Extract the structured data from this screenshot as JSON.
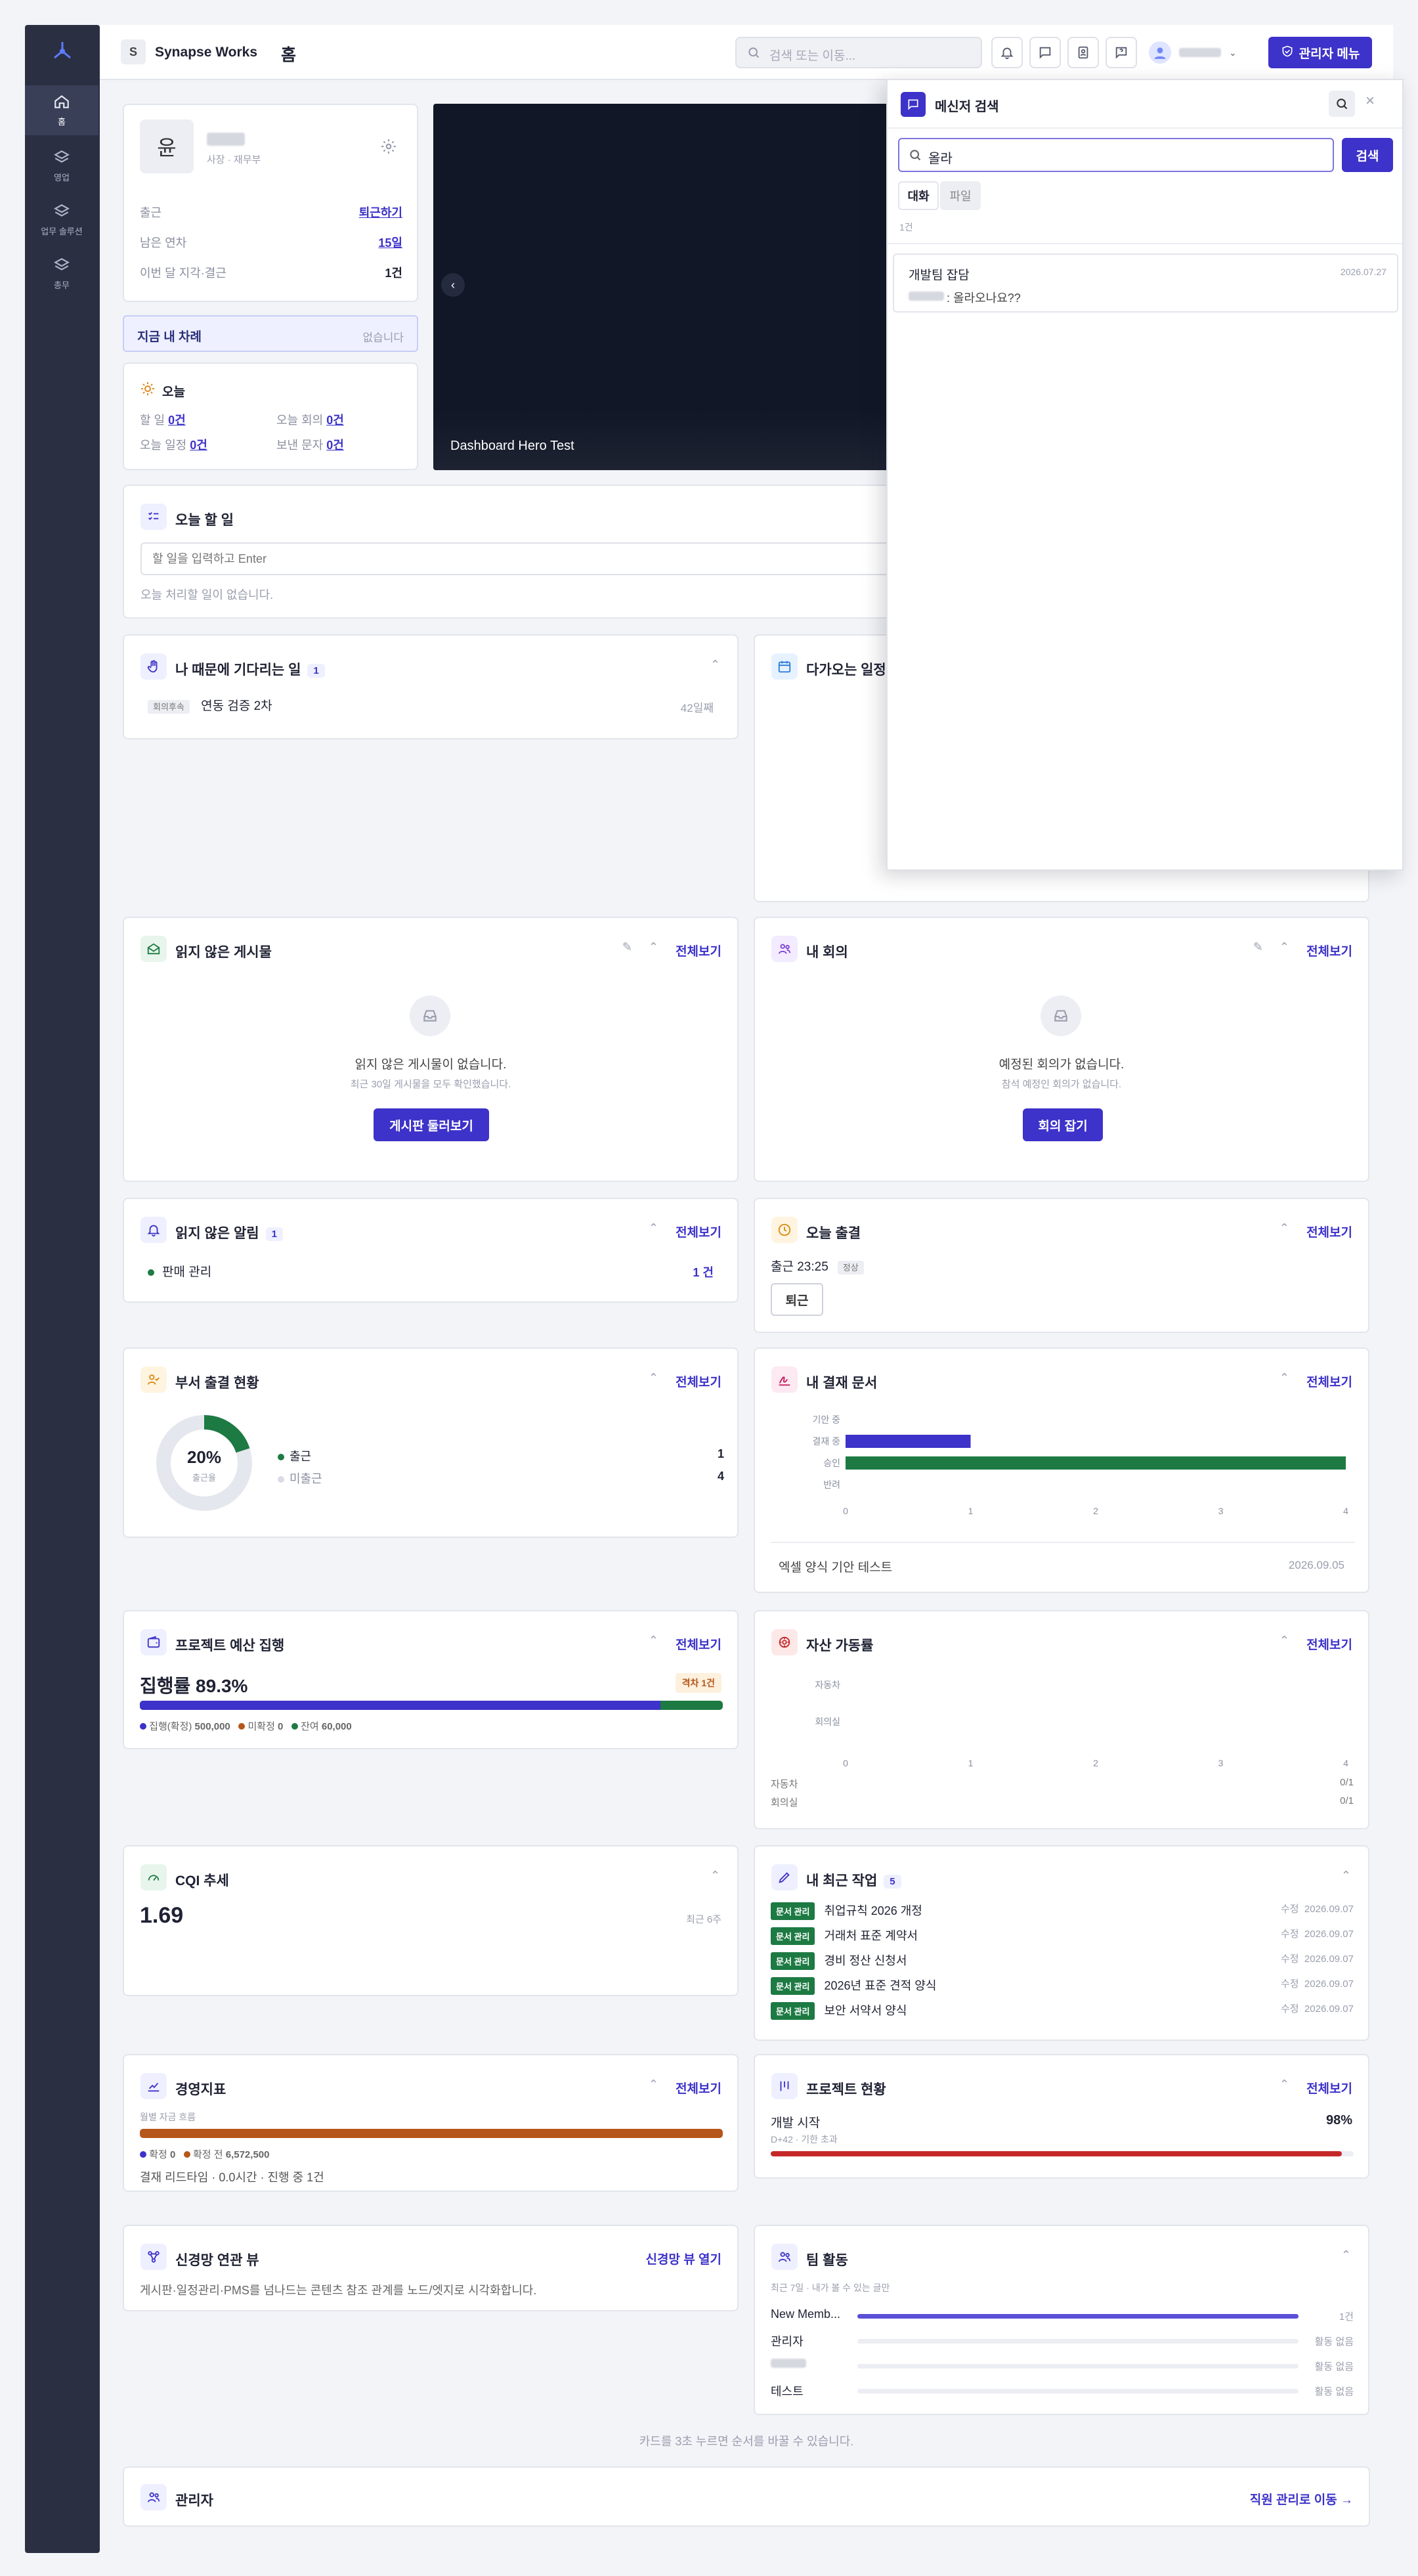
{
  "sidebar": {
    "items": [
      {
        "label": "홈",
        "active": true
      },
      {
        "label": "영업"
      },
      {
        "label": "업무 솔루션"
      },
      {
        "label": "총무"
      }
    ]
  },
  "header": {
    "brand_initial": "S",
    "brand": "Synapse Works",
    "page_title": "홈",
    "search_placeholder": "검색 또는 이동...",
    "admin_button": "관리자 메뉴"
  },
  "profile": {
    "avatar_initial": "윤",
    "role": "사장 · 재무부",
    "rows": [
      {
        "label": "출근",
        "value": "퇴근하기"
      },
      {
        "label": "남은 연차",
        "value": "15일"
      },
      {
        "label": "이번 달 지각·결근",
        "value": "1건"
      }
    ]
  },
  "my_turn": {
    "label": "지금 내 차례",
    "value": "없습니다"
  },
  "today": {
    "title": "오늘",
    "items": [
      {
        "label": "할 일",
        "value": "0건"
      },
      {
        "label": "오늘 회의",
        "value": "0건"
      },
      {
        "label": "오늘 일정",
        "value": "0건"
      },
      {
        "label": "보낸 문자",
        "value": "0건"
      }
    ]
  },
  "hero": {
    "caption": "Dashboard Hero Test"
  },
  "todo": {
    "title": "오늘 할 일",
    "input_placeholder": "할 일을 입력하고 Enter",
    "empty": "오늘 처리할 일이 없습니다."
  },
  "waiting": {
    "title": "나 때문에 기다리는 일",
    "count": "1",
    "item_tag": "회의후속",
    "item_label": "연동 검증 2차",
    "item_meta": "42일째"
  },
  "upcoming": {
    "title": "다가오는 일정"
  },
  "unread_posts": {
    "title": "읽지 않은 게시물",
    "link": "전체보기",
    "empty_title": "읽지 않은 게시물이 없습니다.",
    "empty_sub": "최근 30일 게시물을 모두 확인했습니다.",
    "button": "게시판 둘러보기"
  },
  "my_meetings": {
    "title": "내 회의",
    "link": "전체보기",
    "empty_title": "예정된 회의가 없습니다.",
    "empty_sub": "참석 예정인 회의가 없습니다.",
    "button": "회의 잡기"
  },
  "unread_alerts": {
    "title": "읽지 않은 알림",
    "count": "1",
    "link": "전체보기",
    "item_label": "판매 관리",
    "item_count": "1 건"
  },
  "today_attendance": {
    "title": "오늘 출결",
    "link": "전체보기",
    "checkin": "출근 23:25",
    "status": "정상",
    "button": "퇴근"
  },
  "dept_attendance": {
    "title": "부서 출결 현황",
    "link": "전체보기",
    "percent_text": "20%",
    "percent_label": "출근율",
    "rate": 0.2,
    "legend": [
      {
        "label": "출근",
        "value": "1",
        "color": "#1d7a43"
      },
      {
        "label": "미출근",
        "value": "4",
        "color": "#d9dce4"
      }
    ]
  },
  "approval": {
    "title": "내 결재 문서",
    "link": "전체보기",
    "chart_data": {
      "type": "bar",
      "orientation": "horizontal",
      "categories": [
        "기안 중",
        "결재 중",
        "승인",
        "반려"
      ],
      "values": [
        0,
        1,
        4,
        0
      ],
      "colors": [
        "#3d32c9",
        "#3d32c9",
        "#1d7a43",
        "#3d32c9"
      ],
      "xlim": [
        0,
        4
      ],
      "xticks": [
        "0",
        "1",
        "2",
        "3",
        "4"
      ]
    },
    "footer_label": "엑셀 양식 기안 테스트",
    "footer_date": "2026.09.05"
  },
  "budget": {
    "title": "프로젝트 예산 집행",
    "link": "전체보기",
    "rate_text": "집행률 89.3%",
    "alert": "격차 1건",
    "executed_fraction": 0.893,
    "legend": [
      {
        "label": "집행(확정)",
        "value": "500,000",
        "color": "#3d32c9"
      },
      {
        "label": "미확정",
        "value": "0",
        "color": "#b5561a"
      },
      {
        "label": "잔여",
        "value": "60,000",
        "color": "#1d7a43"
      }
    ]
  },
  "assets": {
    "title": "자산 가동률",
    "link": "전체보기",
    "chart_data": {
      "type": "bar",
      "orientation": "horizontal",
      "categories": [
        "자동차",
        "회의실"
      ],
      "values": [
        0,
        0
      ],
      "xlim": [
        0,
        4
      ],
      "xticks": [
        "0",
        "1",
        "2",
        "3",
        "4"
      ]
    },
    "rows": [
      {
        "label": "자동차",
        "value": "0/1"
      },
      {
        "label": "회의실",
        "value": "0/1"
      }
    ]
  },
  "cqi": {
    "title": "CQI 추세",
    "value": "1.69",
    "meta": "최근 6주"
  },
  "recent_work": {
    "title": "내 최근 작업",
    "count": "5",
    "items": [
      {
        "tag": "문서 관리",
        "label": "취업규칙 2026 개정",
        "action": "수정",
        "date": "2026.09.07"
      },
      {
        "tag": "문서 관리",
        "label": "거래처 표준 계약서",
        "action": "수정",
        "date": "2026.09.07"
      },
      {
        "tag": "문서 관리",
        "label": "경비 정산 신청서",
        "action": "수정",
        "date": "2026.09.07"
      },
      {
        "tag": "문서 관리",
        "label": "2026년 표준 견적 양식",
        "action": "수정",
        "date": "2026.09.07"
      },
      {
        "tag": "문서 관리",
        "label": "보안 서약서 양식",
        "action": "수정",
        "date": "2026.09.07"
      }
    ]
  },
  "kpi": {
    "title": "경영지표",
    "link": "전체보기",
    "subtitle": "월별 자금 흐름",
    "legend": [
      {
        "label": "확정",
        "value": "0",
        "color": "#3d32c9"
      },
      {
        "label": "확정 전",
        "value": "6,572,500",
        "color": "#b5561a"
      }
    ],
    "footer": "결재 리드타임 · 0.0시간 · 진행 중 1건"
  },
  "project_status": {
    "title": "프로젝트 현황",
    "link": "전체보기",
    "name": "개발 시작",
    "percent_text": "98%",
    "progress": 0.98,
    "meta": "D+42 · 기한 초과"
  },
  "graph_view": {
    "title": "신경망 연관 뷰",
    "link": "신경망 뷰 열기",
    "desc": "게시판·일정관리·PMS를 넘나드는 콘텐츠 참조 관계를 노드/엣지로 시각화합니다."
  },
  "team": {
    "title": "팀 활동",
    "subtitle": "최근 7일 · 내가 볼 수 있는 글만",
    "rows": [
      {
        "label": "New Memb...",
        "value": "1건",
        "fraction": 1.0
      },
      {
        "label": "관리자",
        "value": "활동 없음",
        "fraction": 0
      },
      {
        "label": "",
        "value": "활동 없음",
        "fraction": 0
      },
      {
        "label": "테스트",
        "value": "활동 없음",
        "fraction": 0
      }
    ]
  },
  "footer_hint": "카드를 3초 누르면 순서를 바꿀 수 있습니다.",
  "admin_card": {
    "title": "관리자",
    "link": "직원 관리로 이동 →"
  },
  "messenger": {
    "title": "메신저 검색",
    "query": "올라",
    "search_button": "검색",
    "tabs": [
      "대화",
      "파일"
    ],
    "result_count": "1건",
    "result": {
      "room": "개발팀 잡담",
      "date": "2026.07.27",
      "message": ": 올라오나요??"
    }
  }
}
